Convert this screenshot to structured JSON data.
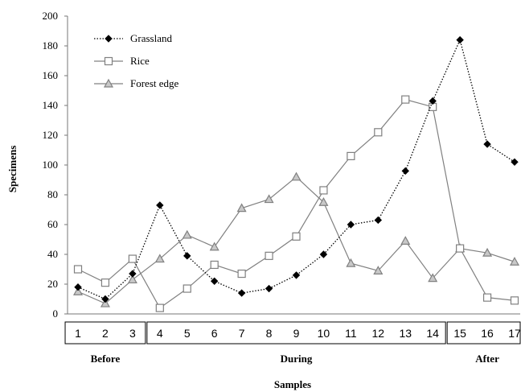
{
  "chart_data": {
    "type": "line",
    "xlabel": "Samples",
    "ylabel": "Specimens",
    "ylim": [
      0,
      200
    ],
    "yticks": [
      0,
      20,
      40,
      60,
      80,
      100,
      120,
      140,
      160,
      180,
      200
    ],
    "categories": [
      "1",
      "2",
      "3",
      "4",
      "5",
      "6",
      "7",
      "8",
      "9",
      "10",
      "11",
      "12",
      "13",
      "14",
      "15",
      "16",
      "17"
    ],
    "groups": [
      {
        "label": "Before",
        "from": 0,
        "to": 2
      },
      {
        "label": "During",
        "from": 3,
        "to": 13
      },
      {
        "label": "After",
        "from": 14,
        "to": 16
      }
    ],
    "legend_position": "top-left",
    "grid": false,
    "series": [
      {
        "name": "Grassland",
        "marker": "filled-diamond",
        "line": "dotted",
        "color": "#000000",
        "values": [
          18,
          10,
          27,
          73,
          39,
          22,
          14,
          17,
          26,
          40,
          60,
          63,
          96,
          143,
          184,
          114,
          102
        ]
      },
      {
        "name": "Rice",
        "marker": "open-square",
        "line": "solid",
        "color": "#808080",
        "values": [
          30,
          21,
          37,
          4,
          17,
          33,
          27,
          39,
          52,
          83,
          106,
          122,
          144,
          139,
          44,
          11,
          9
        ]
      },
      {
        "name": "Forest edge",
        "marker": "open-triangle",
        "line": "solid",
        "color": "#808080",
        "values": [
          15,
          7,
          23,
          37,
          53,
          45,
          71,
          77,
          92,
          75,
          34,
          29,
          49,
          24,
          44,
          41,
          35
        ]
      }
    ]
  }
}
